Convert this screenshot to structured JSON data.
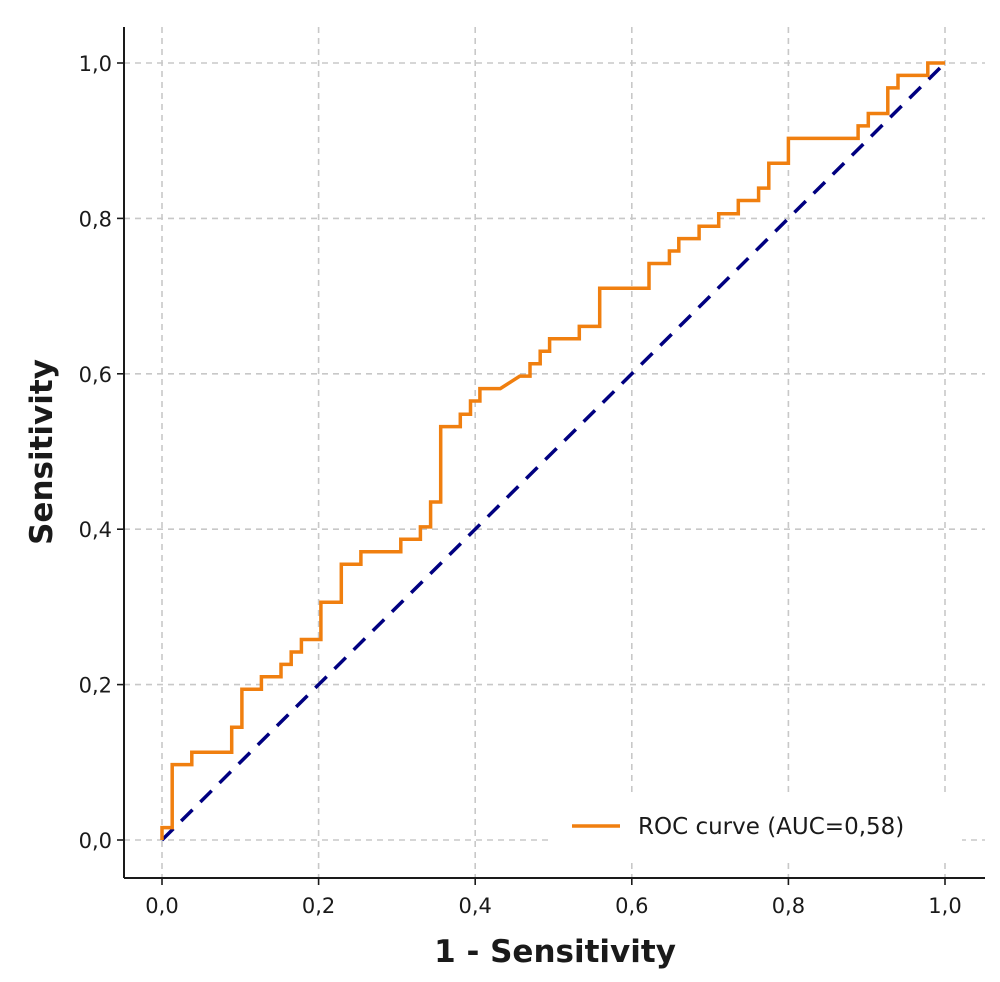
{
  "chart_data": {
    "type": "line",
    "title": "",
    "xlabel": "1 - Sensitivity",
    "ylabel": "Sensitivity",
    "xlim": [
      -0.05,
      1.05
    ],
    "ylim": [
      -0.05,
      1.05
    ],
    "xticks": [
      0.0,
      0.2,
      0.4,
      0.6,
      0.8,
      1.0
    ],
    "yticks": [
      0.0,
      0.2,
      0.4,
      0.6,
      0.8,
      1.0
    ],
    "xtick_labels": [
      "0,0",
      "0,2",
      "0,4",
      "0,6",
      "0,8",
      "1,0"
    ],
    "ytick_labels": [
      "0,0",
      "0,2",
      "0,4",
      "0,6",
      "0,8",
      "1,0"
    ],
    "grid": true,
    "legend_position": "lower-right",
    "series": [
      {
        "name": "ROC curve (AUC=0,58)",
        "color": "#f07f0f",
        "style": "step",
        "x": [
          0.0,
          0.0,
          0.013,
          0.013,
          0.038,
          0.038,
          0.089,
          0.089,
          0.102,
          0.102,
          0.127,
          0.127,
          0.152,
          0.152,
          0.165,
          0.165,
          0.178,
          0.178,
          0.203,
          0.203,
          0.229,
          0.229,
          0.254,
          0.254,
          0.305,
          0.305,
          0.33,
          0.33,
          0.343,
          0.343,
          0.356,
          0.356,
          0.381,
          0.381,
          0.394,
          0.394,
          0.406,
          0.406,
          0.432,
          0.457,
          0.47,
          0.47,
          0.483,
          0.483,
          0.495,
          0.495,
          0.533,
          0.533,
          0.559,
          0.559,
          0.622,
          0.622,
          0.648,
          0.648,
          0.66,
          0.66,
          0.686,
          0.686,
          0.711,
          0.711,
          0.736,
          0.736,
          0.762,
          0.762,
          0.775,
          0.775,
          0.8,
          0.8,
          0.889,
          0.889,
          0.902,
          0.902,
          0.927,
          0.927,
          0.94,
          0.94,
          0.978,
          0.978,
          1.0
        ],
        "y": [
          0.0,
          0.016,
          0.016,
          0.097,
          0.097,
          0.113,
          0.113,
          0.145,
          0.145,
          0.194,
          0.194,
          0.21,
          0.21,
          0.226,
          0.226,
          0.242,
          0.242,
          0.258,
          0.258,
          0.306,
          0.306,
          0.355,
          0.355,
          0.371,
          0.371,
          0.387,
          0.387,
          0.403,
          0.403,
          0.435,
          0.435,
          0.532,
          0.532,
          0.548,
          0.548,
          0.565,
          0.565,
          0.581,
          0.581,
          0.597,
          0.597,
          0.613,
          0.613,
          0.629,
          0.629,
          0.645,
          0.645,
          0.661,
          0.661,
          0.71,
          0.71,
          0.742,
          0.742,
          0.758,
          0.758,
          0.774,
          0.774,
          0.79,
          0.79,
          0.806,
          0.806,
          0.823,
          0.823,
          0.839,
          0.839,
          0.871,
          0.871,
          0.903,
          0.903,
          0.919,
          0.919,
          0.935,
          0.935,
          0.968,
          0.968,
          0.984,
          0.984,
          1.0,
          1.0
        ]
      }
    ],
    "reference_line": {
      "color": "#000080",
      "style": "dashed",
      "x": [
        0.0,
        1.0
      ],
      "y": [
        0.0,
        1.0
      ]
    }
  },
  "colors": {
    "roc": "#f07f0f",
    "diagonal": "#000080",
    "grid": "#c8c8c8",
    "axis": "#1a1a1a"
  }
}
